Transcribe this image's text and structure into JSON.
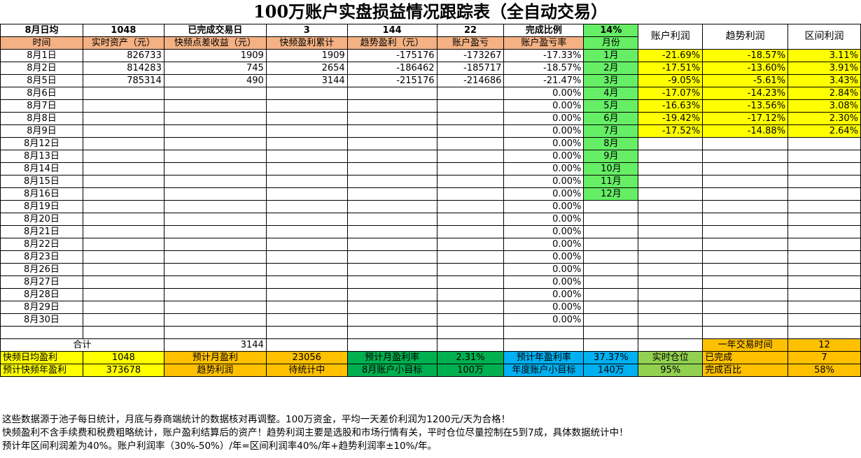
{
  "title": "100万账户实盘损益情况跟踪表（全自动交易）",
  "summary_row": {
    "label": "8月日均",
    "avg": "1048",
    "done_label": "已完成交易日",
    "done_days": "3",
    "v144": "144",
    "v22": "22",
    "ratio_label": "完成比例",
    "ratio": "14%"
  },
  "right_headers": [
    "账户利润",
    "趋势利润",
    "区间利润"
  ],
  "columns": [
    "时间",
    "实时资产（元）",
    "快频点差收益（元）",
    "快频盈利累计",
    "趋势盈利（元）",
    "账户盈亏",
    "账户盈亏率",
    "月份"
  ],
  "rows": [
    {
      "date": "8月1日",
      "asset": "826733",
      "fast": "1909",
      "cum": "1909",
      "trend": "-175176",
      "pnl": "-173267",
      "rate": "-17.33%"
    },
    {
      "date": "8月2日",
      "asset": "814283",
      "fast": "745",
      "cum": "2654",
      "trend": "-186462",
      "pnl": "-185717",
      "rate": "-18.57%"
    },
    {
      "date": "8月5日",
      "asset": "785314",
      "fast": "490",
      "cum": "3144",
      "trend": "-215176",
      "pnl": "-214686",
      "rate": "-21.47%"
    },
    {
      "date": "8月6日",
      "asset": "",
      "fast": "",
      "cum": "",
      "trend": "",
      "pnl": "",
      "rate": "0.00%"
    },
    {
      "date": "8月7日",
      "asset": "",
      "fast": "",
      "cum": "",
      "trend": "",
      "pnl": "",
      "rate": "0.00%"
    },
    {
      "date": "8月8日",
      "asset": "",
      "fast": "",
      "cum": "",
      "trend": "",
      "pnl": "",
      "rate": "0.00%"
    },
    {
      "date": "8月9日",
      "asset": "",
      "fast": "",
      "cum": "",
      "trend": "",
      "pnl": "",
      "rate": "0.00%"
    },
    {
      "date": "8月12日",
      "asset": "",
      "fast": "",
      "cum": "",
      "trend": "",
      "pnl": "",
      "rate": "0.00%"
    },
    {
      "date": "8月13日",
      "asset": "",
      "fast": "",
      "cum": "",
      "trend": "",
      "pnl": "",
      "rate": "0.00%"
    },
    {
      "date": "8月14日",
      "asset": "",
      "fast": "",
      "cum": "",
      "trend": "",
      "pnl": "",
      "rate": "0.00%"
    },
    {
      "date": "8月15日",
      "asset": "",
      "fast": "",
      "cum": "",
      "trend": "",
      "pnl": "",
      "rate": "0.00%"
    },
    {
      "date": "8月16日",
      "asset": "",
      "fast": "",
      "cum": "",
      "trend": "",
      "pnl": "",
      "rate": "0.00%"
    },
    {
      "date": "8月19日",
      "asset": "",
      "fast": "",
      "cum": "",
      "trend": "",
      "pnl": "",
      "rate": "0.00%"
    },
    {
      "date": "8月20日",
      "asset": "",
      "fast": "",
      "cum": "",
      "trend": "",
      "pnl": "",
      "rate": "0.00%"
    },
    {
      "date": "8月21日",
      "asset": "",
      "fast": "",
      "cum": "",
      "trend": "",
      "pnl": "",
      "rate": "0.00%"
    },
    {
      "date": "8月22日",
      "asset": "",
      "fast": "",
      "cum": "",
      "trend": "",
      "pnl": "",
      "rate": "0.00%"
    },
    {
      "date": "8月23日",
      "asset": "",
      "fast": "",
      "cum": "",
      "trend": "",
      "pnl": "",
      "rate": "0.00%"
    },
    {
      "date": "8月26日",
      "asset": "",
      "fast": "",
      "cum": "",
      "trend": "",
      "pnl": "",
      "rate": "0.00%"
    },
    {
      "date": "8月27日",
      "asset": "",
      "fast": "",
      "cum": "",
      "trend": "",
      "pnl": "",
      "rate": "0.00%"
    },
    {
      "date": "8月28日",
      "asset": "",
      "fast": "",
      "cum": "",
      "trend": "",
      "pnl": "",
      "rate": "0.00%"
    },
    {
      "date": "8月29日",
      "asset": "",
      "fast": "",
      "cum": "",
      "trend": "",
      "pnl": "",
      "rate": "0.00%"
    },
    {
      "date": "8月30日",
      "asset": "",
      "fast": "",
      "cum": "",
      "trend": "",
      "pnl": "",
      "rate": "0.00%"
    }
  ],
  "months": [
    "1月",
    "2月",
    "3月",
    "4月",
    "5月",
    "6月",
    "7月",
    "8月",
    "9月",
    "10月",
    "11月",
    "12月"
  ],
  "monthly": [
    {
      "acct": "-21.69%",
      "trend": "-18.57%",
      "range": "3.11%"
    },
    {
      "acct": "-17.51%",
      "trend": "-13.60%",
      "range": "3.91%"
    },
    {
      "acct": "-9.05%",
      "trend": "-5.61%",
      "range": "3.43%"
    },
    {
      "acct": "-17.07%",
      "trend": "-14.23%",
      "range": "2.84%"
    },
    {
      "acct": "-16.63%",
      "trend": "-13.56%",
      "range": "3.08%"
    },
    {
      "acct": "-19.42%",
      "trend": "-17.12%",
      "range": "2.30%"
    },
    {
      "acct": "-17.52%",
      "trend": "-14.88%",
      "range": "2.64%"
    }
  ],
  "total": {
    "label": "合计",
    "value": "3144",
    "year_label": "一年交易时间",
    "year_value": "12"
  },
  "footer": {
    "r1": [
      "快频日均盈利",
      "1048",
      "预计月盈利",
      "23056",
      "预计月盈利率",
      "2.31%",
      "预计年盈利率",
      "37.37%",
      "实时仓位",
      "已完成",
      "7"
    ],
    "r2": [
      "预计快频年盈利",
      "373678",
      "趋势利润",
      "待统计中",
      "8月账户小目标",
      "100万",
      "年度账户小目标",
      "140万",
      "95%",
      "完成百比",
      "58%"
    ]
  },
  "notes": [
    "这些数据源于池子每日统计，月底与券商端统计的数据核对再调整。100万资金，平均一天差价利润为1200元/天为合格！",
    "快频盈利不含手续费和税费粗略统计，账户盈利结算后的资产！趋势利润主要是选股和市场行情有关，平时仓位尽量控制在5到7成，具体数据统计中！",
    "预计年区间利润差为40%。账户利润率（30%-50%）/年=区间利润率40%/年+趋势利润率±10%/年。"
  ]
}
